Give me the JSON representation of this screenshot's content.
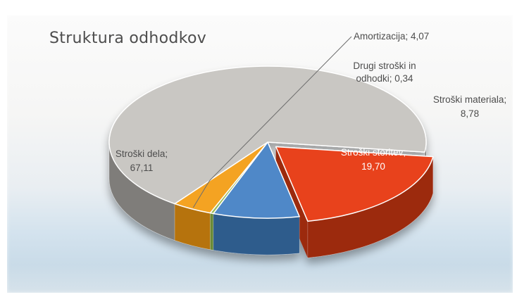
{
  "chart_data": {
    "type": "pie",
    "title": "Struktura odhodkov",
    "separator": "; ",
    "slices": [
      {
        "label": "Stroški storitev",
        "value": 19.7,
        "display": "19,70",
        "color": "#e8431c",
        "side": "#9c2a10",
        "exploded": true,
        "label_color": "#ffffff"
      },
      {
        "label": "Stroški materiala",
        "value": 8.78,
        "display": "8,78",
        "color": "#4f88c8",
        "side": "#2f5b8c",
        "exploded": false,
        "label_color": "#4d4d4d"
      },
      {
        "label": "Drugi stroški in odhodki",
        "value": 0.34,
        "display": "0,34",
        "color": "#9bbb59",
        "side": "#6b8a38",
        "exploded": false,
        "label_color": "#4d4d4d"
      },
      {
        "label": "Amortizacija",
        "value": 4.07,
        "display": "4,07",
        "color": "#f4a322",
        "side": "#b67310",
        "exploded": false,
        "label_color": "#4d4d4d"
      },
      {
        "label": "Stroški dela",
        "value": 67.11,
        "display": "67,11",
        "color": "#c9c7c3",
        "side": "#7f7d7a",
        "exploded": false,
        "label_color": "#4d4d4d"
      }
    ]
  }
}
